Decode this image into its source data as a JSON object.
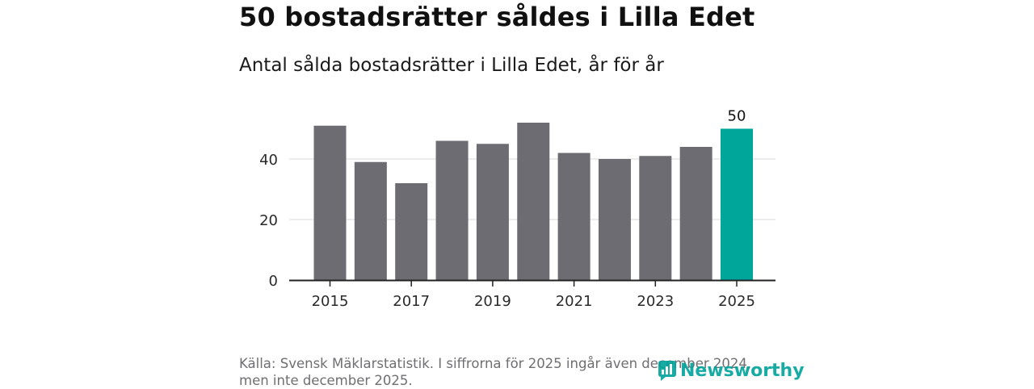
{
  "header": {
    "title": "50 bostadsrätter såldes i Lilla Edet",
    "subtitle": "Antal sålda bostadsrätter i Lilla Edet, år för år"
  },
  "footer": {
    "source": "Källa: Svensk Mäklarstatistik. I siffrorna för 2025 ingår även december 2024, men inte december 2025.",
    "brand": "Newsworthy"
  },
  "colors": {
    "bar": "#6c6c72",
    "highlight": "#00a699",
    "grid": "#d9d9d9",
    "axis": "#222222",
    "brand": "#00a39a"
  },
  "chart_data": {
    "type": "bar",
    "title": "50 bostadsrätter såldes i Lilla Edet",
    "subtitle": "Antal sålda bostadsrätter i Lilla Edet, år för år",
    "xlabel": "",
    "ylabel": "",
    "categories": [
      "2015",
      "2016",
      "2017",
      "2018",
      "2019",
      "2020",
      "2021",
      "2022",
      "2023",
      "2024",
      "2025"
    ],
    "values": [
      51,
      39,
      32,
      46,
      45,
      52,
      42,
      40,
      41,
      44,
      50
    ],
    "xticks": [
      "2015",
      "2017",
      "2019",
      "2021",
      "2023",
      "2025"
    ],
    "yticks": [
      0,
      20,
      40
    ],
    "ylim": [
      0,
      55
    ],
    "grid": true,
    "highlight_index": 10,
    "data_labels": [
      {
        "category": "2025",
        "text": "50"
      }
    ]
  }
}
